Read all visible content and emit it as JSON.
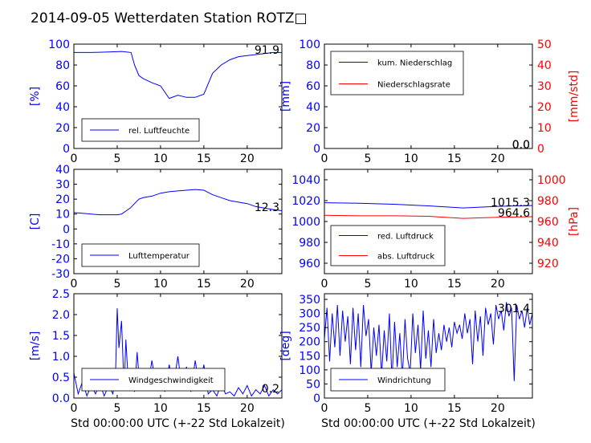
{
  "title": "2014-09-05 Wetterdaten Station ROTZ□",
  "colors": {
    "primary": "#0000ff",
    "secondary": "#ff0000",
    "axis": "#000000"
  },
  "chart_data": [
    {
      "id": "humidity",
      "type": "line",
      "ylabel": "[%]",
      "xlim": [
        0,
        24
      ],
      "ylim": [
        0,
        100
      ],
      "xticks": [
        0,
        5,
        10,
        15,
        20
      ],
      "yticks": [
        0,
        20,
        40,
        60,
        80,
        100
      ],
      "legend": {
        "placement": "lower-left",
        "entries": [
          "rel. Luftfeuchte"
        ]
      },
      "current_label": "91.9",
      "series": [
        {
          "name": "rel. Luftfeuchte",
          "color": "#0000ff",
          "x": [
            0,
            2,
            4,
            5.5,
            6.6,
            7,
            7.5,
            8,
            9,
            10,
            11,
            12,
            13,
            14,
            15,
            16,
            17,
            18,
            19,
            20,
            21,
            22,
            23,
            24
          ],
          "y": [
            92,
            92,
            92.5,
            93,
            92,
            80,
            70,
            67,
            63,
            60,
            48,
            51,
            49,
            49,
            52,
            72,
            80,
            85,
            88,
            89,
            90,
            91,
            92,
            92
          ]
        }
      ]
    },
    {
      "id": "precip",
      "type": "line",
      "ylabel": "[mm]",
      "ylabel_right": "[mm/std]",
      "xlim": [
        0,
        24
      ],
      "ylim": [
        0,
        100
      ],
      "ylim_right": [
        0,
        50
      ],
      "xticks": [
        0,
        5,
        10,
        15,
        20
      ],
      "yticks": [
        0,
        20,
        40,
        60,
        80,
        100
      ],
      "yticks_right": [
        0,
        10,
        20,
        30,
        40,
        50
      ],
      "legend": {
        "placement": "upper-left",
        "entries": [
          "kum. Niederschlag",
          "Niederschlagsrate"
        ]
      },
      "current_label": "0.0",
      "current_label_2": "0.0",
      "series": [
        {
          "name": "kum. Niederschlag",
          "color": "#0000ff",
          "x": [
            0,
            24
          ],
          "y": [
            0,
            0
          ]
        },
        {
          "name": "Niederschlagsrate",
          "color": "#ff0000",
          "x": [
            0,
            24
          ],
          "y": [
            0,
            0
          ]
        }
      ]
    },
    {
      "id": "temp",
      "type": "line",
      "ylabel": "[C]",
      "xlim": [
        0,
        24
      ],
      "ylim": [
        -30,
        40
      ],
      "xticks": [
        0,
        5,
        10,
        15,
        20
      ],
      "yticks": [
        -30,
        -20,
        -10,
        0,
        10,
        20,
        30,
        40
      ],
      "legend": {
        "placement": "lower-left",
        "entries": [
          "Lufttemperatur"
        ]
      },
      "current_label": "12.3",
      "series": [
        {
          "name": "Lufttemperatur",
          "color": "#0000ff",
          "x": [
            0,
            1,
            2,
            3,
            4,
            5,
            5.5,
            6,
            6.5,
            7,
            7.5,
            8,
            9,
            10,
            11,
            12,
            13,
            14,
            15,
            16,
            17,
            18,
            19,
            20,
            21,
            22,
            23,
            24
          ],
          "y": [
            11,
            10.5,
            10,
            9.5,
            9.5,
            9.5,
            10,
            12,
            14,
            17,
            20,
            21,
            22,
            24,
            25,
            25.5,
            26,
            26.5,
            26,
            23,
            21,
            19,
            18,
            17,
            15,
            14,
            13,
            12.3
          ]
        }
      ]
    },
    {
      "id": "pressure",
      "type": "line",
      "ylabel_right": "[hPa]",
      "xlim": [
        0,
        24
      ],
      "ylim": [
        950,
        1050
      ],
      "ylim_right": [
        910,
        1010
      ],
      "xticks": [
        0,
        5,
        10,
        15,
        20
      ],
      "yticks": [
        960,
        980,
        1000,
        1020,
        1040
      ],
      "yticks_right": [
        920,
        940,
        960,
        980,
        1000
      ],
      "legend": {
        "placement": "lower-left",
        "entries": [
          "red. Luftdruck",
          "abs. Luftdruck"
        ]
      },
      "current_label": "1015.3",
      "current_label_2": "964.6",
      "series": [
        {
          "name": "red. Luftdruck",
          "color": "#0000ff",
          "x": [
            0,
            4,
            8,
            12,
            16,
            20,
            24
          ],
          "y": [
            1018,
            1017.5,
            1016.5,
            1015,
            1013,
            1014.5,
            1015.3
          ]
        },
        {
          "name": "abs. Luftdruck",
          "color": "#ff0000",
          "x": [
            0,
            4,
            8,
            12,
            16,
            20,
            24
          ],
          "y": [
            966,
            965.5,
            965.5,
            965,
            963,
            964,
            964.6
          ]
        }
      ]
    },
    {
      "id": "wind",
      "type": "line",
      "ylabel": "[m/s]",
      "xlabel": "Std 00:00:00 UTC (+-22 Std Lokalzeit)",
      "xlim": [
        0,
        24
      ],
      "ylim": [
        0,
        2.5
      ],
      "xticks": [
        0,
        5,
        10,
        15,
        20
      ],
      "yticks": [
        0,
        0.5,
        1.0,
        1.5,
        2.0,
        2.5
      ],
      "legend": {
        "placement": "lower-left",
        "entries": [
          "Windgeschwindigkeit"
        ]
      },
      "current_label": "0.2",
      "series": [
        {
          "name": "Windgeschwindigkeit",
          "color": "#0000ff",
          "x": [
            0,
            0.5,
            1,
            1.5,
            2,
            2.5,
            3,
            3.5,
            4,
            4.5,
            4.8,
            5,
            5.2,
            5.5,
            5.8,
            6,
            6.3,
            6.6,
            7,
            7.3,
            7.6,
            8,
            8.5,
            9,
            9.5,
            10,
            10.5,
            11,
            11.5,
            12,
            12.5,
            13,
            13.5,
            14,
            14.5,
            15,
            15.5,
            16,
            16.5,
            17,
            17.5,
            18,
            18.5,
            19,
            19.5,
            20,
            20.5,
            21,
            21.5,
            22,
            22.5,
            23,
            23.5,
            24
          ],
          "y": [
            0.6,
            0.1,
            0.4,
            0.05,
            0.3,
            0.1,
            0.35,
            0.05,
            0.3,
            0.1,
            0.5,
            2.15,
            1.2,
            1.85,
            0.2,
            1.4,
            0.3,
            0.6,
            0.15,
            1.1,
            0.3,
            0.7,
            0.2,
            0.9,
            0.3,
            0.6,
            0.15,
            0.8,
            0.3,
            1.0,
            0.2,
            0.75,
            0.15,
            0.9,
            0.25,
            0.8,
            0.1,
            0.2,
            0.05,
            0.35,
            0.1,
            0.15,
            0.05,
            0.25,
            0.1,
            0.3,
            0.05,
            0.2,
            0.1,
            0.3,
            0.05,
            0.2,
            0.1,
            0.2
          ]
        }
      ]
    },
    {
      "id": "winddir",
      "type": "line",
      "ylabel": "[deg]",
      "xlabel": "Std 00:00:00 UTC (+-22 Std Lokalzeit)",
      "xlim": [
        0,
        24
      ],
      "ylim": [
        0,
        370
      ],
      "xticks": [
        0,
        5,
        10,
        15,
        20
      ],
      "yticks": [
        0,
        50,
        100,
        150,
        200,
        250,
        300,
        350
      ],
      "legend": {
        "placement": "lower-left",
        "entries": [
          "Windrichtung"
        ]
      },
      "current_label": "301.4",
      "series": [
        {
          "name": "Windrichtung",
          "color": "#0000ff",
          "x": [
            0,
            0.3,
            0.6,
            0.9,
            1.2,
            1.5,
            1.8,
            2.1,
            2.4,
            2.7,
            3,
            3.3,
            3.6,
            3.9,
            4.2,
            4.5,
            4.8,
            5.1,
            5.4,
            5.7,
            6,
            6.3,
            6.6,
            6.9,
            7.2,
            7.5,
            7.8,
            8.1,
            8.4,
            8.7,
            9,
            9.3,
            9.6,
            9.9,
            10.2,
            10.5,
            10.8,
            11.1,
            11.4,
            11.7,
            12,
            12.3,
            12.6,
            12.9,
            13.2,
            13.5,
            13.8,
            14.1,
            14.4,
            14.7,
            15,
            15.3,
            15.6,
            15.9,
            16.2,
            16.5,
            16.8,
            17.1,
            17.4,
            17.7,
            18,
            18.3,
            18.6,
            18.9,
            19.2,
            19.5,
            19.8,
            20.1,
            20.4,
            20.7,
            21,
            21.3,
            21.6,
            21.9,
            22.2,
            22.5,
            22.8,
            23.1,
            23.4,
            23.7,
            24
          ],
          "y": [
            210,
            320,
            130,
            300,
            180,
            330,
            150,
            310,
            200,
            290,
            120,
            320,
            170,
            300,
            110,
            330,
            220,
            280,
            90,
            250,
            150,
            260,
            80,
            240,
            130,
            300,
            60,
            270,
            110,
            230,
            70,
            280,
            140,
            90,
            300,
            160,
            260,
            100,
            310,
            140,
            240,
            110,
            280,
            160,
            230,
            170,
            260,
            200,
            250,
            180,
            270,
            230,
            260,
            210,
            300,
            230,
            280,
            120,
            310,
            200,
            290,
            150,
            320,
            260,
            300,
            190,
            330,
            280,
            310,
            240,
            340,
            290,
            320,
            60,
            330,
            280,
            310,
            250,
            320,
            260,
            300
          ]
        }
      ]
    }
  ]
}
